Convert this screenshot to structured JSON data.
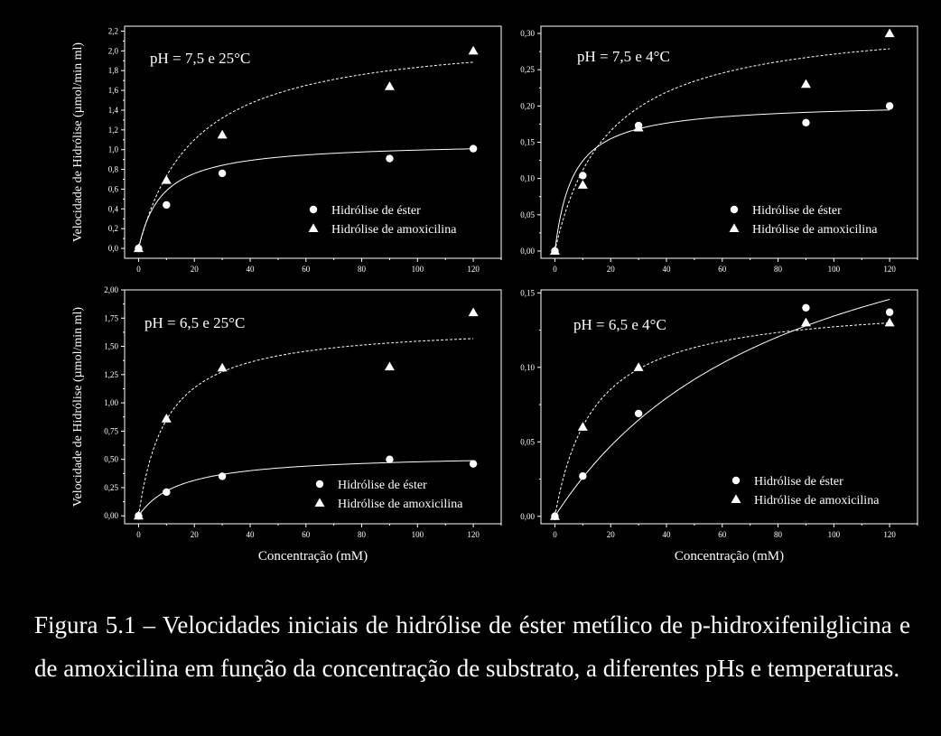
{
  "page": {
    "background": "#000000",
    "foreground": "#ffffff",
    "caption": "Figura 5.1 – Velocidades iniciais de hidrólise de éster metílico de p-hidroxifenilglicina e de amoxicilina em função da concentração de substrato, a diferentes pHs e temperaturas."
  },
  "chart_data": [
    {
      "type": "scatter",
      "annotation": "pH = 7,5 e 25°C",
      "xlabel": "",
      "ylabel": "Velocidade de Hidrólise (µmol/min ml)",
      "xlim": [
        -5,
        130
      ],
      "ylim": [
        -0.1,
        2.25
      ],
      "xticks": [
        "0",
        "20",
        "40",
        "60",
        "80",
        "100",
        "120"
      ],
      "yticks": [
        "0,0",
        "0,2",
        "0,4",
        "0,6",
        "0,8",
        "1,0",
        "1,2",
        "1,4",
        "1,6",
        "1,8",
        "2,0",
        "2,2"
      ],
      "legend": "lower-right",
      "series": [
        {
          "name": "Hidrólise de éster",
          "marker": "circle",
          "x": [
            0,
            10,
            30,
            90,
            120
          ],
          "y": [
            0.0,
            0.44,
            0.76,
            0.91,
            1.01
          ],
          "fit": {
            "style": "solid",
            "vmax": 1.08,
            "km": 8.5
          }
        },
        {
          "name": "Hidrólise de amoxicilina",
          "marker": "triangle",
          "x": [
            0,
            10,
            30,
            90,
            120
          ],
          "y": [
            0.0,
            0.69,
            1.15,
            1.64,
            2.0
          ],
          "fit": {
            "style": "dashed",
            "vmax": 2.2,
            "km": 20
          }
        }
      ]
    },
    {
      "type": "scatter",
      "annotation": "pH = 7,5 e 4°C",
      "xlabel": "",
      "ylabel": "",
      "xlim": [
        -5,
        130
      ],
      "ylim": [
        -0.01,
        0.31
      ],
      "xticks": [
        "0",
        "20",
        "40",
        "60",
        "80",
        "100",
        "120"
      ],
      "yticks": [
        "0,00",
        "0,05",
        "0,10",
        "0,15",
        "0,20",
        "0,25",
        "0,30"
      ],
      "legend": "lower-right",
      "series": [
        {
          "name": "Hidrólise de éster",
          "marker": "circle",
          "x": [
            0,
            10,
            30,
            90,
            120
          ],
          "y": [
            0.0,
            0.104,
            0.173,
            0.177,
            0.2
          ],
          "fit": {
            "style": "solid",
            "vmax": 0.205,
            "km": 6.5
          }
        },
        {
          "name": "Hidrólise de amoxicilina",
          "marker": "triangle",
          "x": [
            0,
            10,
            30,
            90,
            120
          ],
          "y": [
            0.0,
            0.091,
            0.17,
            0.23,
            0.3
          ],
          "fit": {
            "style": "dashed",
            "vmax": 0.323,
            "km": 19
          }
        }
      ]
    },
    {
      "type": "scatter",
      "annotation": "pH = 6,5 e 25°C",
      "xlabel": "Concentração (mM)",
      "ylabel": "Velocidade de Hidrólise (µmol/min ml)",
      "xlim": [
        -5,
        130
      ],
      "ylim": [
        -0.07,
        2.0
      ],
      "xticks": [
        "0",
        "20",
        "40",
        "60",
        "80",
        "100",
        "120"
      ],
      "yticks": [
        "0,00",
        "0,25",
        "0,50",
        "0,75",
        "1,00",
        "1,25",
        "1,50",
        "1,75",
        "2,00"
      ],
      "legend": "lower-right",
      "series": [
        {
          "name": "Hidrólise de éster",
          "marker": "circle",
          "x": [
            0,
            10,
            30,
            90,
            120
          ],
          "y": [
            0.0,
            0.21,
            0.35,
            0.5,
            0.46
          ],
          "fit": {
            "style": "solid",
            "vmax": 0.55,
            "km": 15
          }
        },
        {
          "name": "Hidrólise de amoxicilina",
          "marker": "triangle",
          "x": [
            0,
            10,
            30,
            90,
            120
          ],
          "y": [
            0.0,
            0.86,
            1.31,
            1.32,
            1.8
          ],
          "fit": {
            "style": "dashed",
            "vmax": 1.7,
            "km": 10
          }
        }
      ]
    },
    {
      "type": "scatter",
      "annotation": "pH = 6,5 e 4°C",
      "xlabel": "Concentração (mM)",
      "ylabel": "",
      "xlim": [
        -5,
        130
      ],
      "ylim": [
        -0.005,
        0.152
      ],
      "xticks": [
        "0",
        "20",
        "40",
        "60",
        "80",
        "100",
        "120"
      ],
      "yticks": [
        "0,00",
        "0,05",
        "0,10",
        "0,15"
      ],
      "legend": "lower-right",
      "series": [
        {
          "name": "Hidrólise de éster",
          "marker": "circle",
          "x": [
            0,
            10,
            30,
            90,
            120
          ],
          "y": [
            0.0,
            0.027,
            0.069,
            0.14,
            0.137
          ],
          "fit": {
            "style": "solid",
            "vmax": 0.25,
            "km": 86
          }
        },
        {
          "name": "Hidrólise de amoxicilina",
          "marker": "triangle",
          "x": [
            0,
            10,
            30,
            90,
            120
          ],
          "y": [
            0.0,
            0.06,
            0.1,
            0.13,
            0.13
          ],
          "fit": {
            "style": "dashed",
            "vmax": 0.145,
            "km": 14
          }
        }
      ]
    }
  ]
}
